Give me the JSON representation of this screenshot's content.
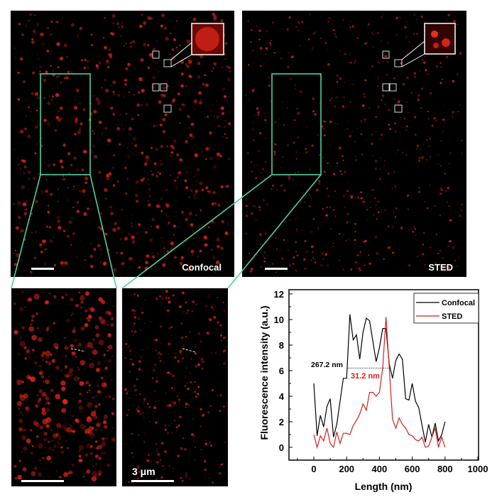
{
  "panels": {
    "confocal_label": "Confocal",
    "sted_label": "STED",
    "scale_bar_label": "3 μm"
  },
  "colors": {
    "background": "#000000",
    "signal": "#ff2a1a",
    "zoom_box": "#4fd19a",
    "confocal_line": "#000000",
    "sted_line": "#d42020"
  },
  "chart_data": {
    "type": "line",
    "title": "",
    "xlabel": "Length (nm)",
    "ylabel": "Fluorescence intensity (a.u.)",
    "xlim": [
      -150,
      1000
    ],
    "ylim": [
      -1,
      12
    ],
    "xticks": [
      0,
      200,
      400,
      600,
      800,
      1000
    ],
    "yticks": [
      0,
      2,
      4,
      6,
      8,
      10,
      12
    ],
    "grid": false,
    "legend_position": "top-right",
    "x": [
      0,
      20,
      40,
      60,
      80,
      100,
      120,
      140,
      160,
      180,
      200,
      220,
      240,
      260,
      280,
      300,
      320,
      340,
      360,
      380,
      400,
      420,
      440,
      460,
      480,
      500,
      520,
      540,
      560,
      580,
      600,
      620,
      640,
      660,
      680,
      700,
      720,
      740,
      760,
      780,
      800
    ],
    "series": [
      {
        "name": "Confocal",
        "values": [
          5,
          0.9,
          2.5,
          1.6,
          3.2,
          3.8,
          0.8,
          1.8,
          3.6,
          5.4,
          5.4,
          10.4,
          8.4,
          8.8,
          6.9,
          9,
          10.1,
          9.9,
          8.3,
          6.7,
          7.8,
          9.3,
          9.3,
          6.5,
          5.4,
          6.8,
          7.3,
          6.9,
          3.8,
          3.7,
          5,
          3.6,
          3.1,
          1.7,
          0.4,
          1.8,
          0.8,
          1.9,
          0.5,
          1.0,
          2.0
        ]
      },
      {
        "name": "STED",
        "values": [
          1,
          0,
          0.9,
          0.5,
          1.5,
          0.3,
          0,
          1.2,
          0.3,
          1.1,
          1.1,
          1.0,
          1.7,
          2.1,
          2.6,
          3.4,
          2.9,
          4.3,
          4.3,
          4.0,
          4.3,
          6.2,
          10.2,
          6.2,
          2.2,
          1.5,
          2.3,
          1.8,
          1.5,
          1.0,
          0.9,
          0.6,
          0.5,
          0.8,
          0,
          0.1,
          0.8,
          1.5,
          0,
          0.8,
          0
        ]
      }
    ],
    "annotations": [
      {
        "text": "267.2 nm",
        "series": "Confocal",
        "y": 6.2,
        "x_range": [
          208,
          468
        ]
      },
      {
        "text": "31.2 nm",
        "series": "STED"
      }
    ]
  }
}
